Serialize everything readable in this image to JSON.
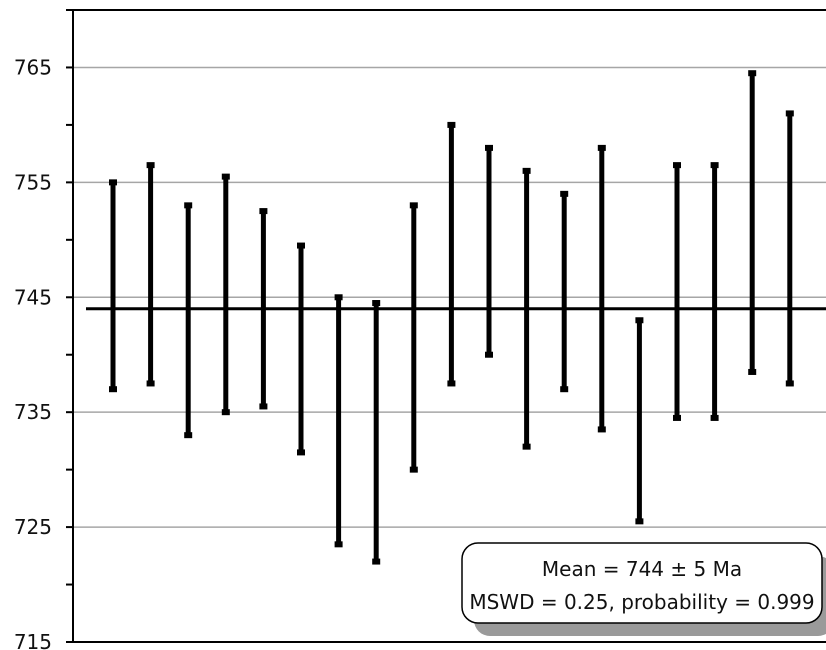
{
  "chart_data": {
    "type": "errorbar",
    "title": "",
    "xlabel": "",
    "ylabel": "",
    "ylim": [
      715,
      770
    ],
    "yticks": [
      765,
      755,
      745,
      735,
      725,
      715
    ],
    "grid": true,
    "x": [
      1,
      2,
      3,
      4,
      5,
      6,
      7,
      8,
      9,
      10,
      11,
      12,
      13,
      14,
      15,
      16,
      17,
      18,
      19
    ],
    "low": [
      737,
      737.5,
      733,
      735,
      735.5,
      731.5,
      723.5,
      722,
      730,
      737.5,
      740,
      732,
      737,
      733.5,
      725.5,
      734.5,
      734.5,
      738.5,
      737.5
    ],
    "high": [
      755,
      756.5,
      753,
      755.5,
      752.5,
      749.5,
      745,
      744.5,
      753,
      760,
      758,
      756,
      754,
      758,
      743,
      756.5,
      756.5,
      764.5,
      761
    ],
    "mean_line": 744,
    "colors": {
      "bars": "#000000",
      "grid": "#a6a6a6",
      "shadow": "#9a9a9a"
    }
  },
  "annotation": {
    "line1": "Mean = 744 ± 5 Ma",
    "line2": "MSWD = 0.25, probability = 0.999"
  }
}
